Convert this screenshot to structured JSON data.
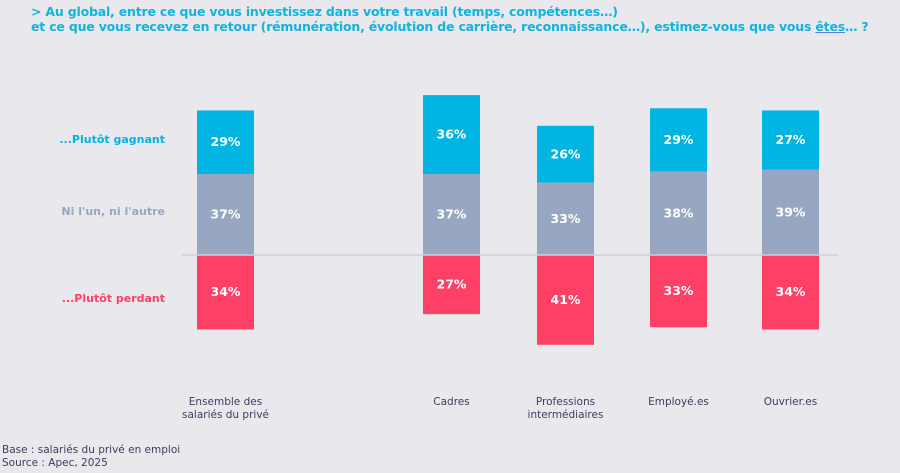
{
  "title": {
    "line1": "> Au global, entre ce que vous investissez dans votre travail (temps, compétences…)",
    "line2_before": "et ce que vous recevez en retour (rémunération, évolution de carrière, reconnaissance…), estimez-vous que vous ",
    "line2_underlined": "êtes",
    "line2_after": "… ?"
  },
  "footer": {
    "base": "Base : salariés du privé en emploi",
    "source": "Source : Apec, 2025"
  },
  "colors": {
    "gagnant": "#00b5e2",
    "neutre": "#98a7c1",
    "perdant": "#ff4066",
    "title": "#11b3df",
    "axis": "#d0d0dc"
  },
  "chart_data": {
    "type": "bar",
    "subtype": "diverging-stacked",
    "categories": [
      "Ensemble des salariés du privé",
      "Cadres",
      "Professions intermédiaires",
      "Employé.es",
      "Ouvrier.es"
    ],
    "category_lines": [
      [
        "Ensemble des",
        "salariés du privé"
      ],
      [
        "Cadres"
      ],
      [
        "Professions",
        "intermédiaires"
      ],
      [
        "Employé.es"
      ],
      [
        "Ouvrier.es"
      ]
    ],
    "series": [
      {
        "name": "...Plutôt gagnant",
        "key": "gagnant",
        "values": [
          29,
          36,
          26,
          29,
          27
        ]
      },
      {
        "name": "Ni l'un, ni l'autre",
        "key": "neutre",
        "values": [
          37,
          37,
          33,
          38,
          39
        ]
      },
      {
        "name": "...Plutôt perdant",
        "key": "perdant",
        "values": [
          34,
          27,
          41,
          33,
          34
        ]
      }
    ],
    "unit": "%",
    "legend_placement": "left",
    "gridlines": false,
    "baseline": "between neutre and perdant"
  }
}
